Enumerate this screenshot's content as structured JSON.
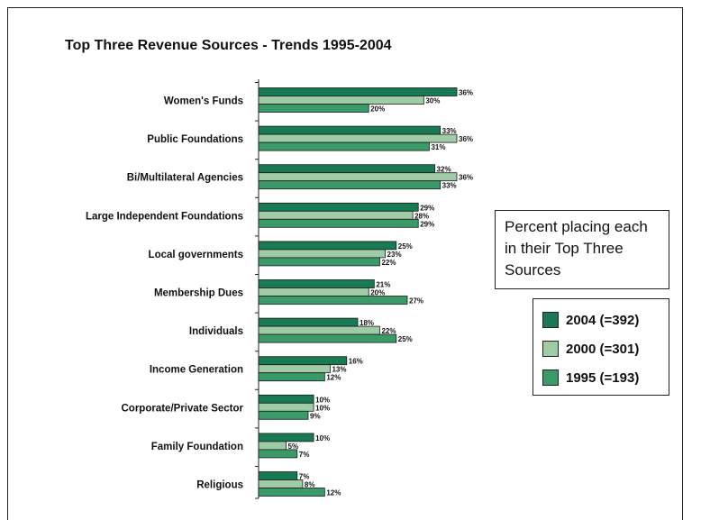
{
  "chart_data": {
    "type": "bar",
    "orientation": "horizontal",
    "title": "Top Three Revenue Sources -  Trends 1995-2004",
    "note": "Percent placing each in their Top Three Sources",
    "categories": [
      "Women's Funds",
      "Public Foundations",
      "Bi/Multilateral Agencies",
      "Large Independent Foundations",
      "Local governments",
      "Membership Dues",
      "Individuals",
      "Income Generation",
      "Corporate/Private Sector",
      "Family Foundation",
      "Religious"
    ],
    "series": [
      {
        "name": "2004 (=392)",
        "color": "#187a52",
        "values": [
          36,
          33,
          32,
          29,
          25,
          21,
          18,
          16,
          10,
          10,
          7
        ]
      },
      {
        "name": "2000 (=301)",
        "color": "#9fcca6",
        "values": [
          30,
          36,
          36,
          28,
          23,
          20,
          22,
          13,
          10,
          5,
          8
        ]
      },
      {
        "name": "1995 (=193)",
        "color": "#3a9a68",
        "values": [
          20,
          31,
          33,
          29,
          22,
          27,
          25,
          12,
          9,
          7,
          12
        ]
      }
    ],
    "value_suffix": "%",
    "xlim": [
      0,
      36
    ],
    "grid": false,
    "legend_position": "right"
  }
}
